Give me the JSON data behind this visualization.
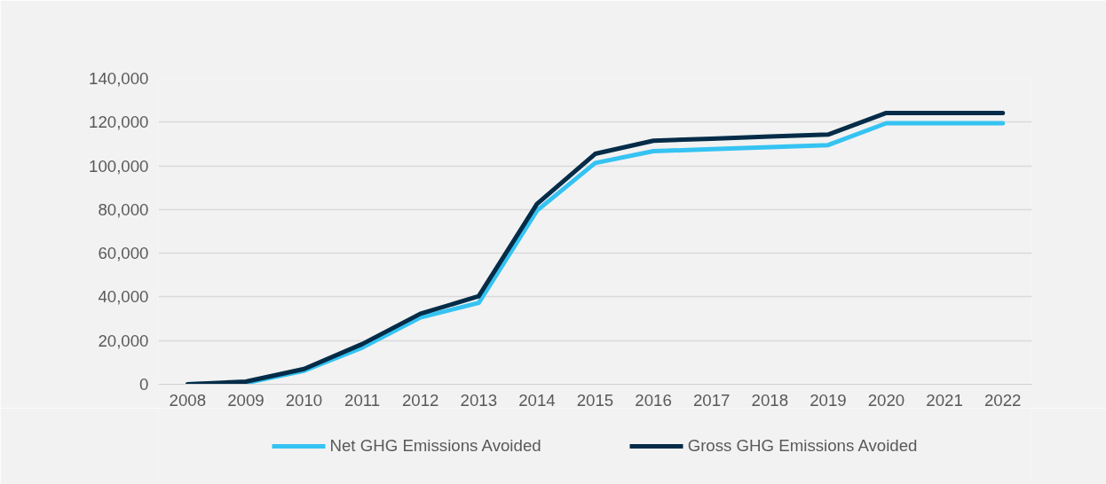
{
  "chart_data": {
    "type": "line",
    "categories": [
      "2008",
      "2009",
      "2010",
      "2011",
      "2012",
      "2013",
      "2014",
      "2015",
      "2016",
      "2017",
      "2018",
      "2019",
      "2020",
      "2021",
      "2022"
    ],
    "series": [
      {
        "name": "Net GHG Emissions Avoided",
        "color": "#35c3f2",
        "values": [
          0,
          600,
          6200,
          16800,
          30600,
          37300,
          79500,
          101300,
          106700,
          107600,
          108600,
          109500,
          119500,
          119500,
          119500
        ]
      },
      {
        "name": "Gross GHG Emissions Avoided",
        "color": "#042c48",
        "values": [
          0,
          1200,
          7000,
          18400,
          32300,
          40300,
          82500,
          105500,
          111500,
          112400,
          113400,
          114300,
          124200,
          124200,
          124200
        ]
      }
    ],
    "ylim": [
      0,
      140000
    ],
    "yticks": [
      {
        "value": 0,
        "label": "0"
      },
      {
        "value": 20000,
        "label": "20,000"
      },
      {
        "value": 40000,
        "label": "40,000"
      },
      {
        "value": 60000,
        "label": "60,000"
      },
      {
        "value": 80000,
        "label": "80,000"
      },
      {
        "value": 100000,
        "label": "100,000"
      },
      {
        "value": 120000,
        "label": "120,000"
      },
      {
        "value": 140000,
        "label": "140,000"
      }
    ],
    "grid": "y",
    "legend": "bottom",
    "marker": "none",
    "line_style": "solid"
  }
}
